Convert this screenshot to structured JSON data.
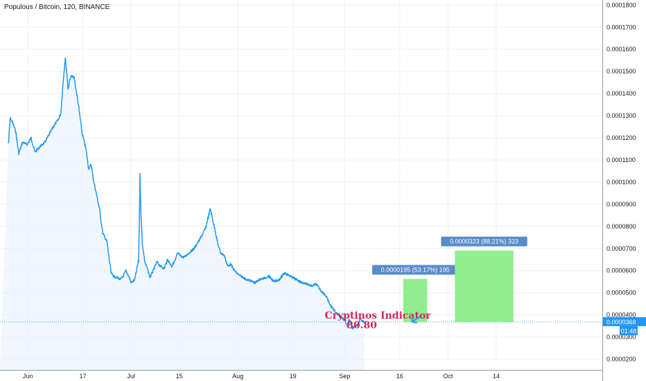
{
  "header": {
    "title": "Populous / Bitcoin, 120, BINANCE"
  },
  "chart_data": {
    "type": "line",
    "title": "Populous / Bitcoin, 120, BINANCE",
    "xlabel": "",
    "ylabel": "",
    "ylim": [
      1.89e-05,
      0.0001823
    ],
    "y_ticks": [
      "0.0000200",
      "0.0000300",
      "0.0000400",
      "0.0000500",
      "0.0000600",
      "0.0000700",
      "0.0000800",
      "0.0000900",
      "0.0001000",
      "0.0001100",
      "0.0001200",
      "0.0001300",
      "0.0001400",
      "0.0001500",
      "0.0001600",
      "0.0001700",
      "0.0001800"
    ],
    "x_ticks": [
      "Jun",
      "17",
      "Jul",
      "15",
      "Aug",
      "19",
      "Sep",
      "16",
      "Oct",
      "14"
    ],
    "x_tick_days": [
      1,
      17,
      31,
      45,
      62,
      78,
      93,
      109,
      123,
      137
    ],
    "grid": true,
    "series": [
      {
        "color": "#2196f3",
        "x_days": [
          -4.6,
          -4.1,
          -3.4,
          -2.5,
          -1.6,
          -0.5,
          0.8,
          2.0,
          3.1,
          4.5,
          6.0,
          7.4,
          8.8,
          9.8,
          10.6,
          11.3,
          11.9,
          12.3,
          12.7,
          13.3,
          13.8,
          14.5,
          15.7,
          16.8,
          17.9,
          18.7,
          19.4,
          20.2,
          20.9,
          21.8,
          22.8,
          24.0,
          25.2,
          25.9,
          26.6,
          27.1,
          27.9,
          28.7,
          29.5,
          30.3,
          31.1,
          32.1,
          33.2,
          33.6,
          33.9,
          34.3,
          35.0,
          35.9,
          36.5,
          37.4,
          38.5,
          39.5,
          40.6,
          41.6,
          42.8,
          43.9,
          44.5,
          45.5,
          46.4,
          47.8,
          49.3,
          50.9,
          52.6,
          54.0,
          55.3,
          56.2,
          57.0,
          58.0,
          59.1,
          59.9,
          61.0,
          62.3,
          63.5,
          64.4,
          65.6,
          67.0,
          68.2,
          69.5,
          71.0,
          72.5,
          74.0,
          75.6,
          77.2,
          79.0,
          80.7,
          82.2,
          83.4,
          84.7,
          86.1,
          87.4,
          88.8,
          90.5,
          91.7,
          93.2,
          93.8,
          94.2,
          94.8,
          95.2,
          95.8,
          96.3,
          97.1,
          97.4,
          98.0,
          98.7
        ],
        "values": [
          0.0001175,
          0.000129,
          0.000127,
          0.000123,
          0.000113,
          0.000118,
          0.000117,
          0.00012,
          0.0001135,
          0.000116,
          0.000118,
          0.000122,
          0.000126,
          0.000128,
          0.000131,
          0.000146,
          0.000156,
          0.00015,
          0.000142,
          0.000147,
          0.000148,
          0.000147,
          0.000135,
          0.000122,
          0.000115,
          0.000106,
          0.000108,
          0.0001,
          9.5e-05,
          8.8e-05,
          7.7e-05,
          7.3e-05,
          5.9e-05,
          5.75e-05,
          5.7e-05,
          5.68e-05,
          5.6e-05,
          5.75e-05,
          6e-05,
          5.75e-05,
          5.45e-05,
          5.6e-05,
          6.5e-05,
          0.000103,
          8.5e-05,
          7.2e-05,
          6.4e-05,
          6e-05,
          5.7e-05,
          6e-05,
          6.4e-05,
          6.2e-05,
          6.1e-05,
          6.5e-05,
          6.2e-05,
          6.5e-05,
          6.8e-05,
          6.65e-05,
          6.6e-05,
          6.8e-05,
          7e-05,
          7.4e-05,
          7.9e-05,
          8.8e-05,
          7.9e-05,
          7.2e-05,
          6.8e-05,
          6.7e-05,
          6.2e-05,
          6.3e-05,
          6e-05,
          5.8e-05,
          5.7e-05,
          5.6e-05,
          5.55e-05,
          5.45e-05,
          5.6e-05,
          5.65e-05,
          5.75e-05,
          5.5e-05,
          5.6e-05,
          5.9e-05,
          5.75e-05,
          5.6e-05,
          5.45e-05,
          5.4e-05,
          5.3e-05,
          5.4e-05,
          5.1e-05,
          4.9e-05,
          4.45e-05,
          4.1e-05,
          3.95e-05,
          3.7e-05,
          3.55e-05,
          3.8e-05,
          3.65e-05,
          3.4e-05,
          3.45e-05,
          3.5e-05,
          3.6e-05,
          3.85e-05,
          3.72e-05,
          3.68e-05
        ]
      }
    ],
    "current_price": {
      "value": 3.68e-05,
      "label": "0.0000368",
      "timer": "01:48",
      "color": "#2196f3"
    },
    "annotations": [
      {
        "type": "box",
        "x0_day": 110,
        "x1_day": 117,
        "y0": 3.68e-05,
        "y1": 5.63e-05,
        "label": "0.0000195 (53.17%) 195",
        "color": "#90ee90",
        "label_color": "#5a8bc9"
      },
      {
        "type": "box",
        "x0_day": 125,
        "x1_day": 142,
        "y0": 3.68e-05,
        "y1": 6.91e-05,
        "label": "0.0000323 (88.21%) 323",
        "color": "#90ee90",
        "label_color": "#5a8bc9"
      }
    ],
    "indicator": {
      "name": "Cryptinos Indicator",
      "value": "80.80",
      "color": "#d6245e"
    }
  }
}
